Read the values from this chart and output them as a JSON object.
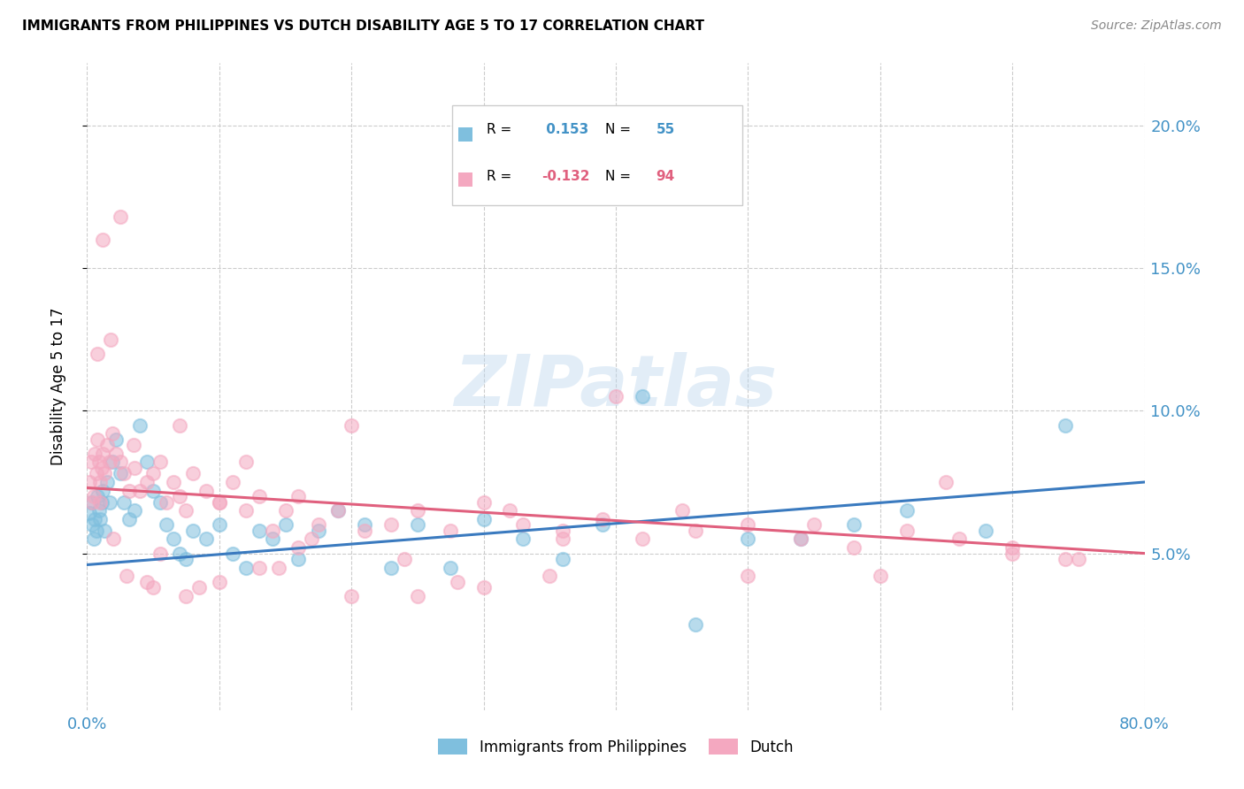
{
  "title": "IMMIGRANTS FROM PHILIPPINES VS DUTCH DISABILITY AGE 5 TO 17 CORRELATION CHART",
  "source": "Source: ZipAtlas.com",
  "ylabel": "Disability Age 5 to 17",
  "xlim": [
    0.0,
    0.8
  ],
  "ylim": [
    -0.005,
    0.222
  ],
  "yticks": [
    0.05,
    0.1,
    0.15,
    0.2
  ],
  "ytick_labels": [
    "5.0%",
    "10.0%",
    "15.0%",
    "20.0%"
  ],
  "xticks": [
    0.0,
    0.1,
    0.2,
    0.3,
    0.4,
    0.5,
    0.6,
    0.7,
    0.8
  ],
  "watermark": "ZIPatlas",
  "blue_color": "#7fbfde",
  "pink_color": "#f4a8c0",
  "blue_line_color": "#3a7abf",
  "pink_line_color": "#e0607e",
  "R_blue": 0.153,
  "N_blue": 55,
  "R_pink": -0.132,
  "N_pink": 94,
  "legend_label_blue": "Immigrants from Philippines",
  "legend_label_pink": "Dutch",
  "blue_scatter_x": [
    0.002,
    0.003,
    0.004,
    0.005,
    0.006,
    0.007,
    0.008,
    0.009,
    0.01,
    0.011,
    0.012,
    0.013,
    0.015,
    0.017,
    0.019,
    0.022,
    0.025,
    0.028,
    0.032,
    0.036,
    0.04,
    0.045,
    0.05,
    0.055,
    0.06,
    0.065,
    0.07,
    0.075,
    0.08,
    0.09,
    0.1,
    0.11,
    0.12,
    0.13,
    0.14,
    0.15,
    0.16,
    0.175,
    0.19,
    0.21,
    0.23,
    0.25,
    0.275,
    0.3,
    0.33,
    0.36,
    0.39,
    0.42,
    0.46,
    0.5,
    0.54,
    0.58,
    0.62,
    0.68,
    0.74
  ],
  "blue_scatter_y": [
    0.064,
    0.068,
    0.06,
    0.055,
    0.062,
    0.058,
    0.07,
    0.065,
    0.062,
    0.068,
    0.072,
    0.058,
    0.075,
    0.068,
    0.082,
    0.09,
    0.078,
    0.068,
    0.062,
    0.065,
    0.095,
    0.082,
    0.072,
    0.068,
    0.06,
    0.055,
    0.05,
    0.048,
    0.058,
    0.055,
    0.06,
    0.05,
    0.045,
    0.058,
    0.055,
    0.06,
    0.048,
    0.058,
    0.065,
    0.06,
    0.045,
    0.06,
    0.045,
    0.062,
    0.055,
    0.048,
    0.06,
    0.105,
    0.025,
    0.055,
    0.055,
    0.06,
    0.065,
    0.058,
    0.095
  ],
  "pink_scatter_x": [
    0.002,
    0.003,
    0.004,
    0.005,
    0.006,
    0.007,
    0.008,
    0.009,
    0.01,
    0.011,
    0.012,
    0.013,
    0.015,
    0.017,
    0.019,
    0.022,
    0.025,
    0.028,
    0.032,
    0.036,
    0.04,
    0.045,
    0.05,
    0.055,
    0.06,
    0.065,
    0.07,
    0.075,
    0.08,
    0.09,
    0.1,
    0.11,
    0.12,
    0.13,
    0.14,
    0.15,
    0.16,
    0.175,
    0.19,
    0.21,
    0.23,
    0.25,
    0.275,
    0.3,
    0.33,
    0.36,
    0.39,
    0.42,
    0.46,
    0.5,
    0.54,
    0.58,
    0.62,
    0.66,
    0.7,
    0.74,
    0.008,
    0.012,
    0.018,
    0.025,
    0.035,
    0.045,
    0.055,
    0.07,
    0.085,
    0.1,
    0.12,
    0.145,
    0.17,
    0.2,
    0.24,
    0.28,
    0.32,
    0.36,
    0.4,
    0.45,
    0.5,
    0.55,
    0.6,
    0.65,
    0.7,
    0.75,
    0.01,
    0.02,
    0.03,
    0.05,
    0.075,
    0.1,
    0.13,
    0.16,
    0.2,
    0.25,
    0.3,
    0.35
  ],
  "pink_scatter_y": [
    0.075,
    0.082,
    0.068,
    0.07,
    0.085,
    0.078,
    0.09,
    0.082,
    0.075,
    0.08,
    0.085,
    0.078,
    0.088,
    0.082,
    0.092,
    0.085,
    0.082,
    0.078,
    0.072,
    0.08,
    0.072,
    0.075,
    0.078,
    0.082,
    0.068,
    0.075,
    0.07,
    0.065,
    0.078,
    0.072,
    0.068,
    0.075,
    0.065,
    0.07,
    0.058,
    0.065,
    0.07,
    0.06,
    0.065,
    0.058,
    0.06,
    0.065,
    0.058,
    0.068,
    0.06,
    0.055,
    0.062,
    0.055,
    0.058,
    0.06,
    0.055,
    0.052,
    0.058,
    0.055,
    0.05,
    0.048,
    0.12,
    0.16,
    0.125,
    0.168,
    0.088,
    0.04,
    0.05,
    0.095,
    0.038,
    0.068,
    0.082,
    0.045,
    0.055,
    0.095,
    0.048,
    0.04,
    0.065,
    0.058,
    0.105,
    0.065,
    0.042,
    0.06,
    0.042,
    0.075,
    0.052,
    0.048,
    0.068,
    0.055,
    0.042,
    0.038,
    0.035,
    0.04,
    0.045,
    0.052,
    0.035,
    0.035,
    0.038,
    0.042
  ]
}
